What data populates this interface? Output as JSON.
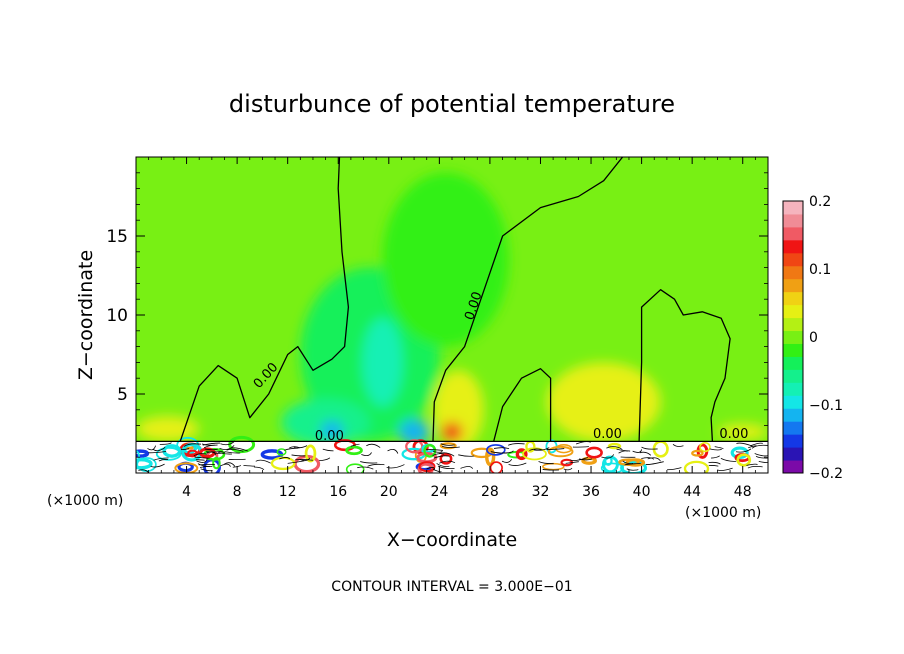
{
  "chart_data": {
    "type": "heatmap",
    "title": "disturbunce of potential temperature",
    "xlabel": "X−coordinate",
    "ylabel": "Z−coordinate",
    "x_unit_left": "(×1000 m)",
    "x_unit_right": "(×1000 m)",
    "xlim": [
      0,
      50
    ],
    "ylim": [
      0,
      20
    ],
    "x_ticks": [
      4,
      8,
      12,
      16,
      20,
      24,
      28,
      32,
      36,
      40,
      44,
      48
    ],
    "x_tick_labels": [
      "4",
      "8",
      "12",
      "16",
      "20",
      "24",
      "28",
      "32",
      "36",
      "40",
      "44",
      "48"
    ],
    "y_ticks": [
      5,
      10,
      15
    ],
    "y_tick_labels": [
      "5",
      "10",
      "15"
    ],
    "footer": "CONTOUR INTERVAL = 3.000E−01",
    "contour_label": "0.00",
    "colorbar": {
      "min": -0.2,
      "max": 0.2,
      "tick_values": [
        0.2,
        0.1,
        0,
        -0.1,
        -0.2
      ],
      "tick_labels": [
        "0.2",
        "0.1",
        "0",
        "−0.1",
        "−0.2"
      ],
      "colors": [
        "#7b0aa8",
        "#2a14b4",
        "#1438e6",
        "#1478f0",
        "#14b4f0",
        "#14e6e6",
        "#14f0b4",
        "#14f08c",
        "#14f05a",
        "#32f014",
        "#78f014",
        "#b4f014",
        "#e6f014",
        "#f0d214",
        "#f0a014",
        "#f07814",
        "#f04614",
        "#f01414",
        "#f05a64",
        "#f08c96",
        "#f5b4be"
      ]
    },
    "background_value": 0.0,
    "surface_layer_top": 2.0,
    "regions": [
      {
        "x": 18.5,
        "z": 7.5,
        "rx": 5.5,
        "rz": 5.5,
        "value": -0.04
      },
      {
        "x": 19.5,
        "z": 7.0,
        "rx": 1.6,
        "rz": 2.8,
        "value": -0.07
      },
      {
        "x": 15.0,
        "z": 3.2,
        "rx": 3.5,
        "rz": 1.5,
        "value": -0.05
      },
      {
        "x": 22.0,
        "z": 2.6,
        "rx": 1.2,
        "rz": 0.8,
        "value": -0.12
      },
      {
        "x": 15.5,
        "z": 2.7,
        "rx": 0.9,
        "rz": 0.6,
        "value": -0.11
      },
      {
        "x": 2.5,
        "z": 2.8,
        "rx": 2.5,
        "rz": 0.8,
        "value": 0.03
      },
      {
        "x": 25.5,
        "z": 4.0,
        "rx": 2.0,
        "rz": 2.5,
        "value": 0.04
      },
      {
        "x": 25.0,
        "z": 2.6,
        "rx": 0.8,
        "rz": 0.6,
        "value": 0.14
      },
      {
        "x": 37.0,
        "z": 4.5,
        "rx": 4.5,
        "rz": 2.5,
        "value": 0.03
      },
      {
        "x": 24.5,
        "z": 13.5,
        "rx": 5.0,
        "rz": 5.5,
        "value": -0.02
      },
      {
        "x": 48.0,
        "z": 2.6,
        "rx": 2.0,
        "rz": 0.5,
        "value": 0.03
      }
    ]
  }
}
